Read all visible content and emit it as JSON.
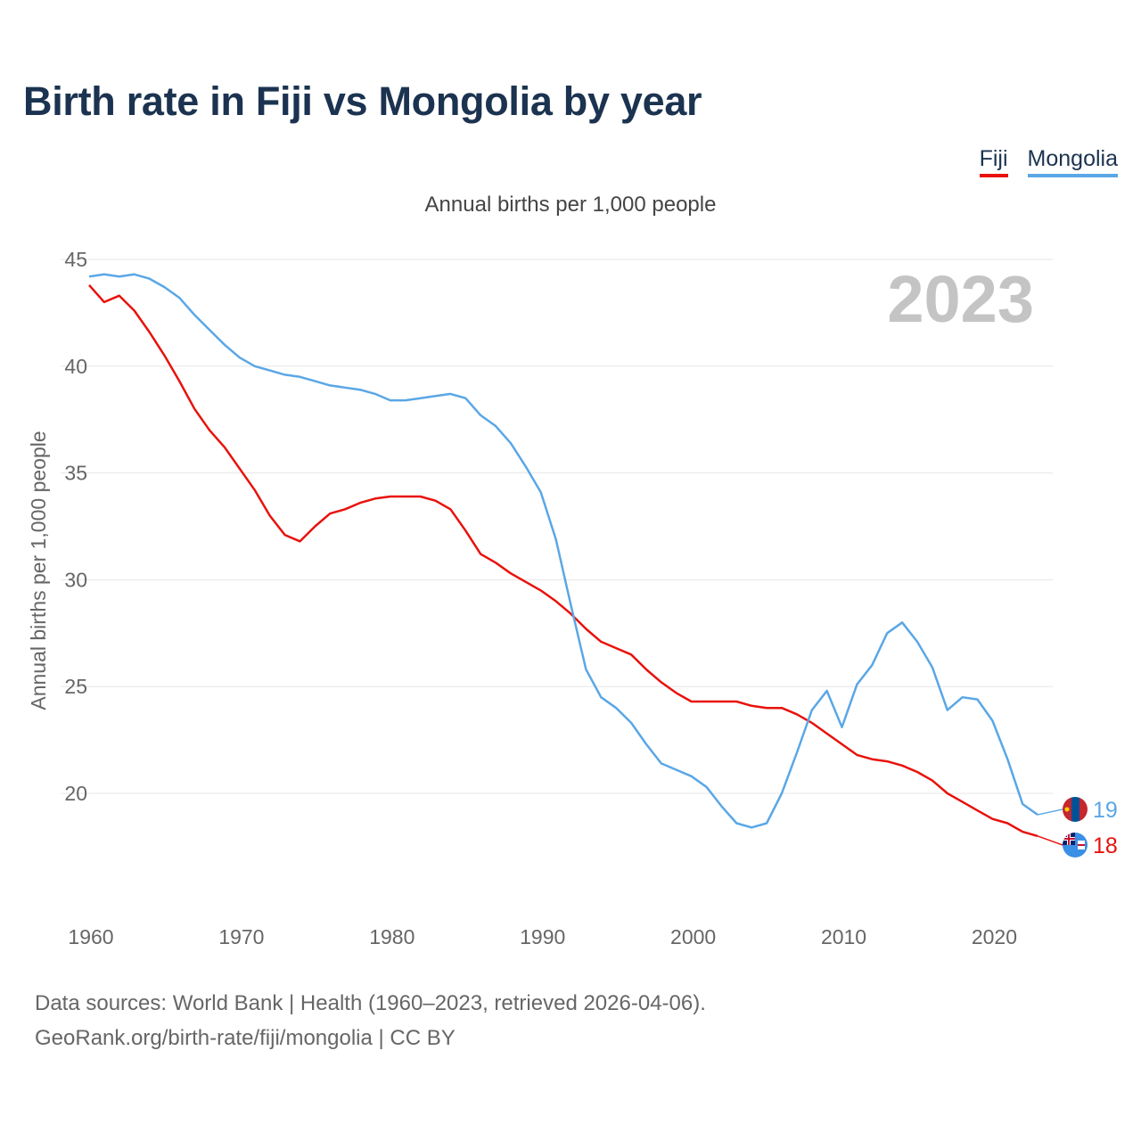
{
  "title": "Birth rate in Fiji vs Mongolia by year",
  "legend": {
    "fiji": "Fiji",
    "mongolia": "Mongolia"
  },
  "subtitle": "Annual births per 1,000 people",
  "colors": {
    "fiji": "#e8120c",
    "mongolia": "#5aa7e6",
    "title": "#1b3350",
    "year_watermark": "#c4c4c4"
  },
  "chart_data": {
    "type": "line",
    "ylabel": "Annual births per 1,000 people",
    "xlabel": "",
    "ylim": [
      15.2,
      45
    ],
    "xlim": [
      1960,
      2024
    ],
    "y_ticks": [
      20,
      25,
      30,
      35,
      40,
      45
    ],
    "x_ticks": [
      1960,
      1970,
      1980,
      1990,
      2000,
      2010,
      2020
    ],
    "year_label": "2023",
    "grid": true,
    "x": [
      1960,
      1961,
      1962,
      1963,
      1964,
      1965,
      1966,
      1967,
      1968,
      1969,
      1970,
      1971,
      1972,
      1973,
      1974,
      1975,
      1976,
      1977,
      1978,
      1979,
      1980,
      1981,
      1982,
      1983,
      1984,
      1985,
      1986,
      1987,
      1988,
      1989,
      1990,
      1991,
      1992,
      1993,
      1994,
      1995,
      1996,
      1997,
      1998,
      1999,
      2000,
      2001,
      2002,
      2003,
      2004,
      2005,
      2006,
      2007,
      2008,
      2009,
      2010,
      2011,
      2012,
      2013,
      2014,
      2015,
      2016,
      2017,
      2018,
      2019,
      2020,
      2021,
      2022,
      2023
    ],
    "series": [
      {
        "name": "Fiji",
        "end_label": "18",
        "values": [
          43.8,
          43.0,
          43.3,
          42.6,
          41.6,
          40.5,
          39.3,
          38.0,
          37.0,
          36.2,
          35.2,
          34.2,
          33.0,
          32.1,
          31.8,
          32.5,
          33.1,
          33.3,
          33.6,
          33.8,
          33.9,
          33.9,
          33.9,
          33.7,
          33.3,
          32.3,
          31.2,
          30.8,
          30.3,
          29.9,
          29.5,
          29.0,
          28.4,
          27.7,
          27.1,
          26.8,
          26.5,
          25.8,
          25.2,
          24.7,
          24.3,
          24.3,
          24.3,
          24.3,
          24.1,
          24.0,
          24.0,
          23.7,
          23.3,
          22.8,
          22.3,
          21.8,
          21.6,
          21.5,
          21.3,
          21.0,
          20.6,
          20.0,
          19.6,
          19.2,
          18.8,
          18.6,
          18.2,
          18.0
        ]
      },
      {
        "name": "Mongolia",
        "end_label": "19",
        "values": [
          44.2,
          44.3,
          44.2,
          44.3,
          44.1,
          43.7,
          43.2,
          42.4,
          41.7,
          41.0,
          40.4,
          40.0,
          39.8,
          39.6,
          39.5,
          39.3,
          39.1,
          39.0,
          38.9,
          38.7,
          38.4,
          38.4,
          38.5,
          38.6,
          38.7,
          38.5,
          37.7,
          37.2,
          36.4,
          35.3,
          34.1,
          31.9,
          28.8,
          25.8,
          24.5,
          24.0,
          23.3,
          22.3,
          21.4,
          21.1,
          20.8,
          20.3,
          19.4,
          18.6,
          18.4,
          18.6,
          20.0,
          21.9,
          23.9,
          24.8,
          23.1,
          25.1,
          26.0,
          27.5,
          28.0,
          27.1,
          25.9,
          23.9,
          24.5,
          24.4,
          23.4,
          21.6,
          19.5,
          19.0
        ]
      }
    ]
  },
  "footer": {
    "line1": "Data sources: World Bank | Health (1960–2023, retrieved 2026-04-06).",
    "line2": "GeoRank.org/birth-rate/fiji/mongolia | CC BY"
  }
}
